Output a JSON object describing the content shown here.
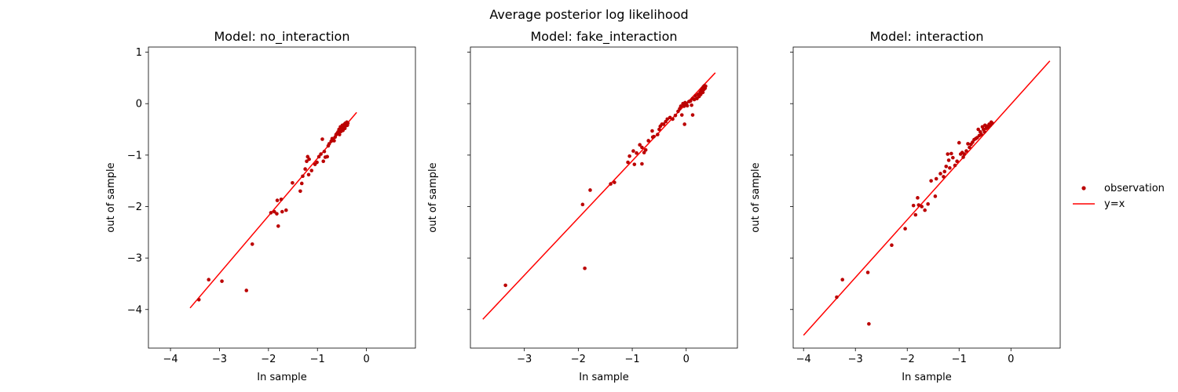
{
  "figure": {
    "suptitle": "Average posterior log likelihood",
    "legend": {
      "placement": "right, vertically centered",
      "items": [
        {
          "label": "observation",
          "kind": "marker"
        },
        {
          "label": "y=x",
          "kind": "line"
        }
      ]
    }
  },
  "colors": {
    "points": "#bb0000",
    "line": "#ff0000"
  },
  "chart_data": [
    {
      "type": "scatter",
      "title": "Model: no_interaction",
      "xlabel": "In sample",
      "ylabel": "out of sample",
      "xlim": [
        -4.45,
        1.0
      ],
      "ylim": [
        -4.75,
        1.1
      ],
      "sharey_labels": true,
      "xticks": [
        -4,
        -3,
        -2,
        -1,
        0
      ],
      "xtick_labels": [
        "−4",
        "−3",
        "−2",
        "−1",
        "0"
      ],
      "yticks": [
        1,
        0,
        -1,
        -2,
        -3,
        -4
      ],
      "ytick_labels": [
        "1",
        "0",
        "−1",
        "−2",
        "−3",
        "−4"
      ],
      "reference_line": {
        "label": "y=x",
        "from": [
          -3.6,
          -3.97
        ],
        "to": [
          -0.2,
          -0.17
        ]
      },
      "points": [
        [
          -3.42,
          -3.81
        ],
        [
          -3.22,
          -3.42
        ],
        [
          -2.95,
          -3.45
        ],
        [
          -2.45,
          -3.63
        ],
        [
          -2.33,
          -2.73
        ],
        [
          -1.95,
          -2.12
        ],
        [
          -1.88,
          -2.1
        ],
        [
          -1.83,
          -2.14
        ],
        [
          -1.82,
          -1.88
        ],
        [
          -1.8,
          -2.38
        ],
        [
          -1.74,
          -1.86
        ],
        [
          -1.72,
          -2.1
        ],
        [
          -1.64,
          -2.07
        ],
        [
          -1.51,
          -1.54
        ],
        [
          -1.35,
          -1.7
        ],
        [
          -1.32,
          -1.55
        ],
        [
          -1.3,
          -1.41
        ],
        [
          -1.25,
          -1.27
        ],
        [
          -1.22,
          -1.12
        ],
        [
          -1.2,
          -1.03
        ],
        [
          -1.17,
          -1.08
        ],
        [
          -1.18,
          -1.38
        ],
        [
          -1.12,
          -1.3
        ],
        [
          -1.05,
          -1.18
        ],
        [
          -1.01,
          -1.14
        ],
        [
          -0.97,
          -1.03
        ],
        [
          -0.93,
          -0.98
        ],
        [
          -0.9,
          -0.69
        ],
        [
          -0.88,
          -1.12
        ],
        [
          -0.86,
          -0.93
        ],
        [
          -0.84,
          -1.04
        ],
        [
          -0.8,
          -1.03
        ],
        [
          -0.78,
          -0.82
        ],
        [
          -0.76,
          -0.78
        ],
        [
          -0.72,
          -0.73
        ],
        [
          -0.7,
          -0.68
        ],
        [
          -0.66,
          -0.72
        ],
        [
          -0.64,
          -0.65
        ],
        [
          -0.62,
          -0.6
        ],
        [
          -0.6,
          -0.58
        ],
        [
          -0.58,
          -0.55
        ],
        [
          -0.56,
          -0.5
        ],
        [
          -0.55,
          -0.6
        ],
        [
          -0.53,
          -0.45
        ],
        [
          -0.52,
          -0.54
        ],
        [
          -0.5,
          -0.48
        ],
        [
          -0.49,
          -0.42
        ],
        [
          -0.48,
          -0.52
        ],
        [
          -0.46,
          -0.45
        ],
        [
          -0.45,
          -0.4
        ],
        [
          -0.44,
          -0.48
        ],
        [
          -0.43,
          -0.38
        ],
        [
          -0.42,
          -0.43
        ],
        [
          -0.41,
          -0.4
        ],
        [
          -0.4,
          -0.36
        ],
        [
          -0.39,
          -0.42
        ],
        [
          -0.38,
          -0.38
        ]
      ]
    },
    {
      "type": "scatter",
      "title": "Model: fake_interaction",
      "xlabel": "In sample",
      "ylabel": "out of sample",
      "xlim": [
        -4.0,
        0.95
      ],
      "ylim": [
        -4.75,
        1.1
      ],
      "sharey_labels": true,
      "xticks": [
        -3,
        -2,
        -1,
        0
      ],
      "xtick_labels": [
        "−3",
        "−2",
        "−1",
        "0"
      ],
      "yticks": [
        1,
        0,
        -1,
        -2,
        -3,
        -4
      ],
      "ytick_labels": [],
      "reference_line": {
        "label": "y=x",
        "from": [
          -3.77,
          -4.19
        ],
        "to": [
          0.54,
          0.6
        ]
      },
      "points": [
        [
          -3.35,
          -3.53
        ],
        [
          -1.88,
          -3.2
        ],
        [
          -1.92,
          -1.96
        ],
        [
          -1.78,
          -1.68
        ],
        [
          -1.4,
          -1.56
        ],
        [
          -1.33,
          -1.53
        ],
        [
          -1.08,
          -1.14
        ],
        [
          -1.05,
          -1.02
        ],
        [
          -0.98,
          -0.92
        ],
        [
          -0.96,
          -1.18
        ],
        [
          -0.92,
          -0.96
        ],
        [
          -0.86,
          -0.8
        ],
        [
          -0.82,
          -0.85
        ],
        [
          -0.82,
          -1.17
        ],
        [
          -0.78,
          -0.95
        ],
        [
          -0.75,
          -0.9
        ],
        [
          -0.7,
          -0.72
        ],
        [
          -0.63,
          -0.53
        ],
        [
          -0.62,
          -0.65
        ],
        [
          -0.6,
          -0.64
        ],
        [
          -0.53,
          -0.6
        ],
        [
          -0.5,
          -0.5
        ],
        [
          -0.48,
          -0.44
        ],
        [
          -0.45,
          -0.4
        ],
        [
          -0.42,
          -0.4
        ],
        [
          -0.38,
          -0.35
        ],
        [
          -0.35,
          -0.3
        ],
        [
          -0.3,
          -0.27
        ],
        [
          -0.25,
          -0.3
        ],
        [
          -0.2,
          -0.23
        ],
        [
          -0.15,
          -0.15
        ],
        [
          -0.12,
          -0.1
        ],
        [
          -0.1,
          -0.05
        ],
        [
          -0.08,
          -0.22
        ],
        [
          -0.06,
          0.0
        ],
        [
          -0.04,
          -0.05
        ],
        [
          -0.02,
          0.02
        ],
        [
          -0.03,
          -0.4
        ],
        [
          0.0,
          0.0
        ],
        [
          0.02,
          -0.04
        ],
        [
          0.05,
          0.04
        ],
        [
          0.08,
          0.05
        ],
        [
          0.1,
          -0.03
        ],
        [
          0.12,
          0.1
        ],
        [
          0.12,
          -0.22
        ],
        [
          0.15,
          0.08
        ],
        [
          0.17,
          0.15
        ],
        [
          0.2,
          0.1
        ],
        [
          0.22,
          0.18
        ],
        [
          0.24,
          0.14
        ],
        [
          0.26,
          0.22
        ],
        [
          0.27,
          0.18
        ],
        [
          0.28,
          0.26
        ],
        [
          0.3,
          0.3
        ],
        [
          0.31,
          0.22
        ],
        [
          0.32,
          0.33
        ],
        [
          0.33,
          0.28
        ],
        [
          0.34,
          0.35
        ],
        [
          0.35,
          0.3
        ],
        [
          0.36,
          0.34
        ]
      ]
    },
    {
      "type": "scatter",
      "title": "Model: interaction",
      "xlabel": "In sample",
      "ylabel": "out of sample",
      "xlim": [
        -4.2,
        0.95
      ],
      "ylim": [
        -4.75,
        1.1
      ],
      "sharey_labels": true,
      "xticks": [
        -4,
        -3,
        -2,
        -1,
        0
      ],
      "xtick_labels": [
        "−4",
        "−3",
        "−2",
        "−1",
        "0"
      ],
      "yticks": [
        1,
        0,
        -1,
        -2,
        -3,
        -4
      ],
      "ytick_labels": [],
      "reference_line": {
        "label": "y=x",
        "from": [
          -4.0,
          -4.5
        ],
        "to": [
          0.75,
          0.83
        ]
      },
      "points": [
        [
          -3.36,
          -3.76
        ],
        [
          -3.25,
          -3.42
        ],
        [
          -2.76,
          -3.28
        ],
        [
          -2.74,
          -4.28
        ],
        [
          -2.3,
          -2.75
        ],
        [
          -2.04,
          -2.43
        ],
        [
          -1.88,
          -1.98
        ],
        [
          -1.84,
          -2.16
        ],
        [
          -1.8,
          -1.83
        ],
        [
          -1.78,
          -1.97
        ],
        [
          -1.72,
          -2.0
        ],
        [
          -1.66,
          -2.07
        ],
        [
          -1.6,
          -1.95
        ],
        [
          -1.54,
          -1.5
        ],
        [
          -1.46,
          -1.8
        ],
        [
          -1.44,
          -1.46
        ],
        [
          -1.36,
          -1.36
        ],
        [
          -1.3,
          -1.42
        ],
        [
          -1.28,
          -1.32
        ],
        [
          -1.25,
          -1.22
        ],
        [
          -1.22,
          -0.98
        ],
        [
          -1.2,
          -1.1
        ],
        [
          -1.18,
          -1.25
        ],
        [
          -1.15,
          -0.97
        ],
        [
          -1.12,
          -1.05
        ],
        [
          -1.08,
          -1.2
        ],
        [
          -1.04,
          -1.12
        ],
        [
          -1.0,
          -0.76
        ],
        [
          -0.97,
          -0.98
        ],
        [
          -0.94,
          -0.95
        ],
        [
          -0.92,
          -1.04
        ],
        [
          -0.9,
          -0.98
        ],
        [
          -0.86,
          -0.92
        ],
        [
          -0.83,
          -0.78
        ],
        [
          -0.8,
          -0.85
        ],
        [
          -0.77,
          -0.79
        ],
        [
          -0.74,
          -0.75
        ],
        [
          -0.71,
          -0.7
        ],
        [
          -0.68,
          -0.68
        ],
        [
          -0.65,
          -0.66
        ],
        [
          -0.63,
          -0.5
        ],
        [
          -0.61,
          -0.62
        ],
        [
          -0.59,
          -0.55
        ],
        [
          -0.57,
          -0.6
        ],
        [
          -0.55,
          -0.45
        ],
        [
          -0.53,
          -0.5
        ],
        [
          -0.51,
          -0.55
        ],
        [
          -0.5,
          -0.42
        ],
        [
          -0.48,
          -0.48
        ],
        [
          -0.46,
          -0.44
        ],
        [
          -0.44,
          -0.46
        ],
        [
          -0.42,
          -0.4
        ],
        [
          -0.4,
          -0.42
        ],
        [
          -0.38,
          -0.36
        ],
        [
          -0.36,
          -0.38
        ]
      ]
    }
  ]
}
